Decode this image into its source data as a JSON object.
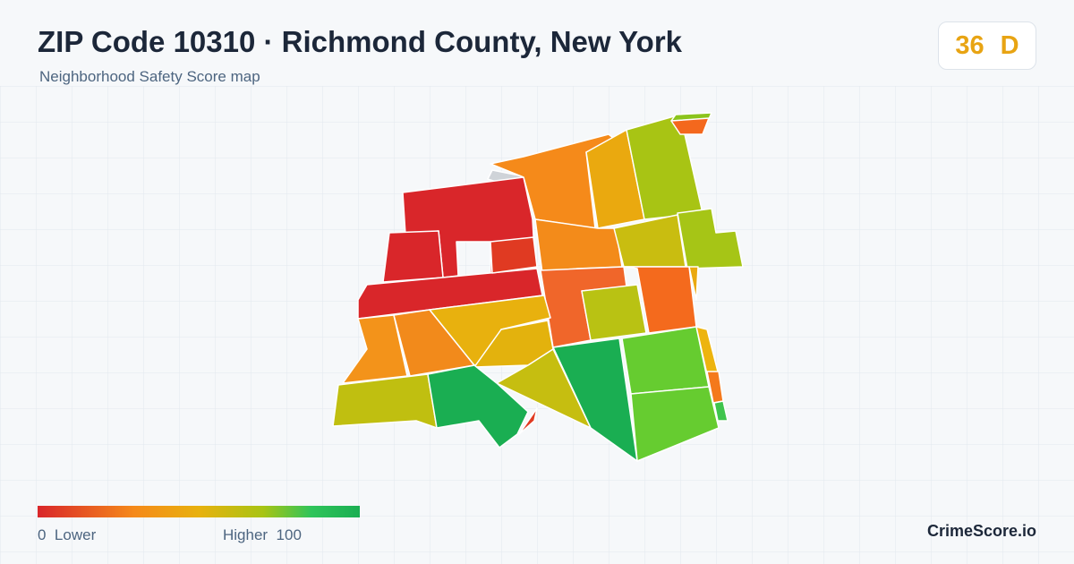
{
  "header": {
    "title": "ZIP Code 10310 · Richmond County, New York",
    "subtitle": "Neighborhood Safety Score map"
  },
  "score": {
    "value": 36,
    "grade": "D"
  },
  "legend": {
    "min": 0,
    "min_label": "Lower",
    "max_label": "Higher",
    "max": 100
  },
  "brand": "CrimeScore.io"
}
